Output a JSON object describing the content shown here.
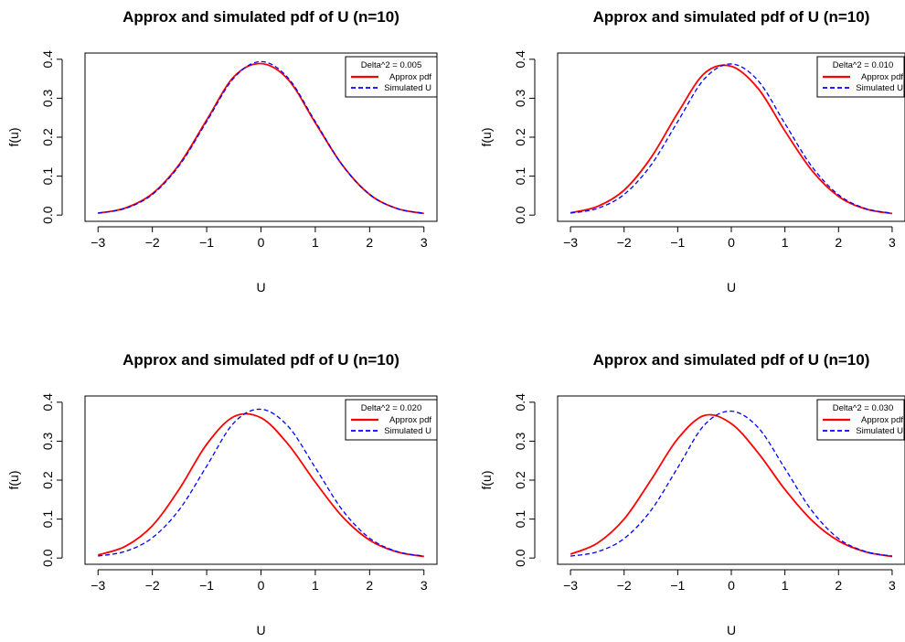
{
  "chart_data": [
    {
      "type": "line",
      "title": "Approx and simulated pdf of U (n=10)",
      "xlabel": "U",
      "ylabel": "f(u)",
      "xlim": [
        -3,
        3
      ],
      "ylim": [
        0,
        0.4
      ],
      "xticks": [
        "−3",
        "−2",
        "−1",
        "0",
        "1",
        "2",
        "3"
      ],
      "yticks": [
        "0.0",
        "0.1",
        "0.2",
        "0.3",
        "0.4"
      ],
      "legend": {
        "heading": "Delta^2 = 0.005",
        "position": "top-right"
      },
      "series": [
        {
          "name": "Approx pdf",
          "color": "#ff0000",
          "style": "solid",
          "x": [
            -3,
            -2.5,
            -2,
            -1.5,
            -1,
            -0.5,
            0,
            0.5,
            1,
            1.5,
            2,
            2.5,
            3
          ],
          "y": [
            0.005,
            0.018,
            0.055,
            0.131,
            0.244,
            0.355,
            0.389,
            0.348,
            0.237,
            0.128,
            0.053,
            0.017,
            0.004
          ]
        },
        {
          "name": "Simulated U",
          "color": "#0000ff",
          "style": "dashed",
          "x": [
            -3,
            -2.5,
            -2,
            -1.5,
            -1,
            -0.5,
            0,
            0.5,
            1,
            1.5,
            2,
            2.5,
            3
          ],
          "y": [
            0.005,
            0.017,
            0.053,
            0.128,
            0.24,
            0.352,
            0.394,
            0.352,
            0.24,
            0.128,
            0.053,
            0.017,
            0.005
          ]
        }
      ]
    },
    {
      "type": "line",
      "title": "Approx and simulated pdf of U (n=10)",
      "xlabel": "U",
      "ylabel": "f(u)",
      "xlim": [
        -3,
        3
      ],
      "ylim": [
        0,
        0.4
      ],
      "xticks": [
        "−3",
        "−2",
        "−1",
        "0",
        "1",
        "2",
        "3"
      ],
      "yticks": [
        "0.0",
        "0.1",
        "0.2",
        "0.3",
        "0.4"
      ],
      "legend": {
        "heading": "Delta^2 = 0.010",
        "position": "top-right"
      },
      "series": [
        {
          "name": "Approx pdf",
          "color": "#ff0000",
          "style": "solid",
          "x": [
            -3,
            -2.5,
            -2,
            -1.5,
            -1,
            -0.5,
            0,
            0.5,
            1,
            1.5,
            2,
            2.5,
            3
          ],
          "y": [
            0.006,
            0.022,
            0.064,
            0.147,
            0.262,
            0.364,
            0.382,
            0.325,
            0.216,
            0.115,
            0.048,
            0.016,
            0.004
          ]
        },
        {
          "name": "Simulated U",
          "color": "#0000ff",
          "style": "dashed",
          "x": [
            -3,
            -2.5,
            -2,
            -1.5,
            -1,
            -0.5,
            0,
            0.5,
            1,
            1.5,
            2,
            2.5,
            3
          ],
          "y": [
            0.005,
            0.017,
            0.053,
            0.128,
            0.24,
            0.35,
            0.388,
            0.345,
            0.235,
            0.125,
            0.052,
            0.017,
            0.005
          ]
        }
      ]
    },
    {
      "type": "line",
      "title": "Approx and simulated pdf of U (n=10)",
      "xlabel": "U",
      "ylabel": "f(u)",
      "xlim": [
        -3,
        3
      ],
      "ylim": [
        0,
        0.4
      ],
      "xticks": [
        "−3",
        "−2",
        "−1",
        "0",
        "1",
        "2",
        "3"
      ],
      "yticks": [
        "0.0",
        "0.1",
        "0.2",
        "0.3",
        "0.4"
      ],
      "legend": {
        "heading": "Delta^2 = 0.020",
        "position": "top-right"
      },
      "series": [
        {
          "name": "Approx pdf",
          "color": "#ff0000",
          "style": "solid",
          "x": [
            -3,
            -2.5,
            -2,
            -1.5,
            -1,
            -0.5,
            0,
            0.5,
            1,
            1.5,
            2,
            2.5,
            3
          ],
          "y": [
            0.008,
            0.03,
            0.083,
            0.178,
            0.292,
            0.363,
            0.36,
            0.292,
            0.195,
            0.106,
            0.046,
            0.016,
            0.004
          ]
        },
        {
          "name": "Simulated U",
          "color": "#0000ff",
          "style": "dashed",
          "x": [
            -3,
            -2.5,
            -2,
            -1.5,
            -1,
            -0.5,
            0,
            0.5,
            1,
            1.5,
            2,
            2.5,
            3
          ],
          "y": [
            0.005,
            0.017,
            0.052,
            0.125,
            0.236,
            0.347,
            0.382,
            0.338,
            0.232,
            0.123,
            0.051,
            0.017,
            0.005
          ]
        }
      ]
    },
    {
      "type": "line",
      "title": "Approx and simulated pdf of U (n=10)",
      "xlabel": "U",
      "ylabel": "f(u)",
      "xlim": [
        -3,
        3
      ],
      "ylim": [
        0,
        0.4
      ],
      "xticks": [
        "−3",
        "−2",
        "−1",
        "0",
        "1",
        "2",
        "3"
      ],
      "yticks": [
        "0.0",
        "0.1",
        "0.2",
        "0.3",
        "0.4"
      ],
      "legend": {
        "heading": "Delta^2 = 0.030",
        "position": "top-right"
      },
      "series": [
        {
          "name": "Approx pdf",
          "color": "#ff0000",
          "style": "solid",
          "x": [
            -3,
            -2.5,
            -2,
            -1.5,
            -1,
            -0.5,
            0,
            0.5,
            1,
            1.5,
            2,
            2.5,
            3
          ],
          "y": [
            0.01,
            0.038,
            0.1,
            0.2,
            0.306,
            0.366,
            0.345,
            0.27,
            0.176,
            0.097,
            0.044,
            0.016,
            0.004
          ]
        },
        {
          "name": "Simulated U",
          "color": "#0000ff",
          "style": "dashed",
          "x": [
            -3,
            -2.5,
            -2,
            -1.5,
            -1,
            -0.5,
            0,
            0.5,
            1,
            1.5,
            2,
            2.5,
            3
          ],
          "y": [
            0.005,
            0.016,
            0.05,
            0.122,
            0.232,
            0.342,
            0.377,
            0.335,
            0.23,
            0.122,
            0.05,
            0.017,
            0.005
          ]
        }
      ]
    }
  ]
}
